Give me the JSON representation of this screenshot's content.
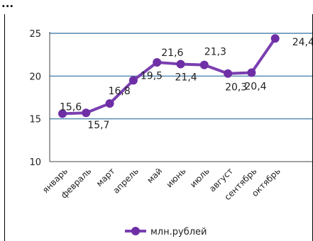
{
  "top_text": "...",
  "chart_data": {
    "type": "line",
    "categories": [
      "январь",
      "февраль",
      "март",
      "апрель",
      "май",
      "июнь",
      "июль",
      "август",
      "сентябрь",
      "октябрь"
    ],
    "series": [
      {
        "name": "млн.рублей",
        "values": [
          15.6,
          15.7,
          16.8,
          19.5,
          21.6,
          21.4,
          21.3,
          20.3,
          20.4,
          24.4
        ],
        "labels": [
          "15,6",
          "15,7",
          "16,8",
          "19,5",
          "21,6",
          "21,4",
          "21,3",
          "20,3",
          "20,4",
          "24,4"
        ]
      }
    ],
    "yticks": [
      "10",
      "15",
      "20",
      "25"
    ],
    "ylim": [
      10,
      25
    ],
    "grid": true,
    "legend": "bottom",
    "colors": {
      "line": "#7a3fb0",
      "marker": "#6e2fa6",
      "grid": "#2f6f9f",
      "axis": "#444444"
    }
  }
}
